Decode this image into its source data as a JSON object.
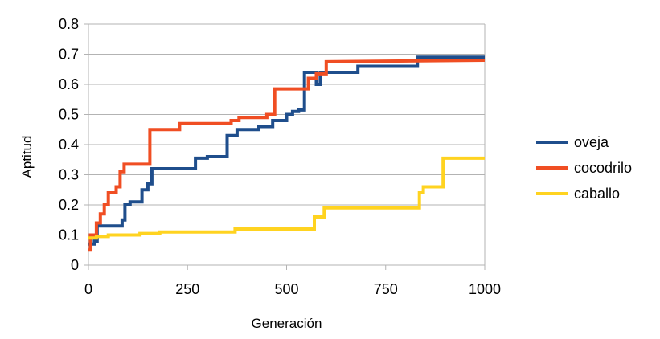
{
  "chart_data": {
    "type": "line",
    "xlabel": "Generación",
    "ylabel": "Aptitud",
    "xlim": [
      0,
      1000
    ],
    "ylim": [
      0,
      0.8
    ],
    "xticks": [
      "0",
      "250",
      "500",
      "750",
      "1000"
    ],
    "yticks": [
      "0",
      "0.1",
      "0.2",
      "0.3",
      "0.4",
      "0.5",
      "0.6",
      "0.7",
      "0.8"
    ],
    "grid": "horizontal",
    "legend_position": "right",
    "series": [
      {
        "name": "oveja",
        "color": "#1f4e8c",
        "points": [
          [
            0,
            0.07
          ],
          [
            15,
            0.07
          ],
          [
            15,
            0.08
          ],
          [
            22,
            0.08
          ],
          [
            22,
            0.13
          ],
          [
            85,
            0.13
          ],
          [
            85,
            0.15
          ],
          [
            92,
            0.15
          ],
          [
            92,
            0.2
          ],
          [
            105,
            0.2
          ],
          [
            105,
            0.21
          ],
          [
            135,
            0.21
          ],
          [
            135,
            0.25
          ],
          [
            150,
            0.25
          ],
          [
            150,
            0.27
          ],
          [
            160,
            0.27
          ],
          [
            160,
            0.32
          ],
          [
            270,
            0.32
          ],
          [
            270,
            0.355
          ],
          [
            300,
            0.355
          ],
          [
            300,
            0.36
          ],
          [
            350,
            0.36
          ],
          [
            350,
            0.43
          ],
          [
            375,
            0.43
          ],
          [
            375,
            0.45
          ],
          [
            430,
            0.45
          ],
          [
            430,
            0.46
          ],
          [
            465,
            0.46
          ],
          [
            465,
            0.48
          ],
          [
            500,
            0.48
          ],
          [
            500,
            0.5
          ],
          [
            515,
            0.5
          ],
          [
            515,
            0.51
          ],
          [
            530,
            0.51
          ],
          [
            530,
            0.515
          ],
          [
            545,
            0.515
          ],
          [
            545,
            0.64
          ],
          [
            575,
            0.64
          ],
          [
            575,
            0.6
          ],
          [
            585,
            0.6
          ],
          [
            585,
            0.64
          ],
          [
            680,
            0.64
          ],
          [
            680,
            0.66
          ],
          [
            830,
            0.66
          ],
          [
            830,
            0.69
          ],
          [
            1000,
            0.69
          ]
        ]
      },
      {
        "name": "cocodrilo",
        "color": "#f04e23",
        "points": [
          [
            0,
            0.05
          ],
          [
            5,
            0.05
          ],
          [
            5,
            0.1
          ],
          [
            20,
            0.1
          ],
          [
            20,
            0.14
          ],
          [
            30,
            0.14
          ],
          [
            30,
            0.17
          ],
          [
            40,
            0.17
          ],
          [
            40,
            0.2
          ],
          [
            50,
            0.2
          ],
          [
            50,
            0.24
          ],
          [
            70,
            0.24
          ],
          [
            70,
            0.26
          ],
          [
            80,
            0.26
          ],
          [
            80,
            0.31
          ],
          [
            90,
            0.31
          ],
          [
            90,
            0.335
          ],
          [
            155,
            0.335
          ],
          [
            155,
            0.45
          ],
          [
            230,
            0.45
          ],
          [
            230,
            0.47
          ],
          [
            360,
            0.47
          ],
          [
            360,
            0.48
          ],
          [
            380,
            0.48
          ],
          [
            380,
            0.49
          ],
          [
            450,
            0.49
          ],
          [
            450,
            0.5
          ],
          [
            470,
            0.5
          ],
          [
            470,
            0.585
          ],
          [
            555,
            0.585
          ],
          [
            555,
            0.62
          ],
          [
            575,
            0.62
          ],
          [
            575,
            0.635
          ],
          [
            600,
            0.635
          ],
          [
            600,
            0.675
          ],
          [
            1000,
            0.68
          ]
        ]
      },
      {
        "name": "caballo",
        "color": "#ffd320",
        "points": [
          [
            0,
            0.09
          ],
          [
            20,
            0.09
          ],
          [
            20,
            0.095
          ],
          [
            50,
            0.095
          ],
          [
            50,
            0.1
          ],
          [
            130,
            0.1
          ],
          [
            130,
            0.105
          ],
          [
            180,
            0.105
          ],
          [
            180,
            0.11
          ],
          [
            370,
            0.11
          ],
          [
            370,
            0.12
          ],
          [
            570,
            0.12
          ],
          [
            570,
            0.16
          ],
          [
            595,
            0.16
          ],
          [
            595,
            0.19
          ],
          [
            835,
            0.19
          ],
          [
            835,
            0.24
          ],
          [
            845,
            0.24
          ],
          [
            845,
            0.26
          ],
          [
            895,
            0.26
          ],
          [
            895,
            0.355
          ],
          [
            1000,
            0.355
          ]
        ]
      }
    ]
  }
}
